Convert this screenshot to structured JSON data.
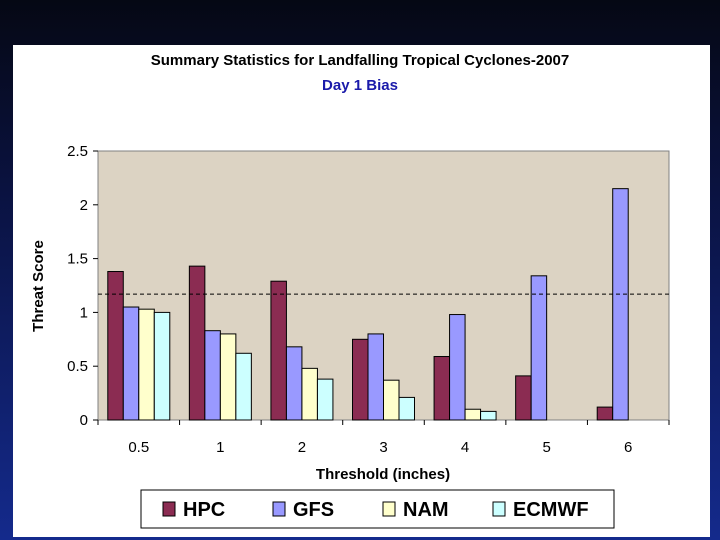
{
  "chart_data": {
    "type": "bar",
    "title": "Summary Statistics for Landfalling Tropical Cyclones-2007",
    "subtitle": "Day 1 Bias",
    "xlabel": "Threshold (inches)",
    "ylabel": "Threat Score",
    "categories": [
      "0.5",
      "1",
      "2",
      "3",
      "4",
      "5",
      "6"
    ],
    "ylim": [
      0,
      2.5
    ],
    "yticks": [
      "0",
      "0.5",
      "1",
      "1.5",
      "2",
      "2.5"
    ],
    "reference_line": 1.17,
    "legend_position": "bottom",
    "series": [
      {
        "name": "HPC",
        "color": "#8b2c52",
        "values": [
          1.38,
          1.43,
          1.29,
          0.75,
          0.59,
          0.41,
          0.12
        ]
      },
      {
        "name": "GFS",
        "color": "#9999ff",
        "values": [
          1.05,
          0.83,
          0.68,
          0.8,
          0.98,
          1.34,
          2.15
        ]
      },
      {
        "name": "NAM",
        "color": "#ffffcc",
        "values": [
          1.03,
          0.8,
          0.48,
          0.37,
          0.1,
          null,
          null
        ]
      },
      {
        "name": "ECMWF",
        "color": "#ccffff",
        "values": [
          1.0,
          0.62,
          0.38,
          0.21,
          0.08,
          null,
          null
        ]
      }
    ],
    "plot_background": "#dcd3c3",
    "subtitle_color": "#1a1aaa"
  }
}
